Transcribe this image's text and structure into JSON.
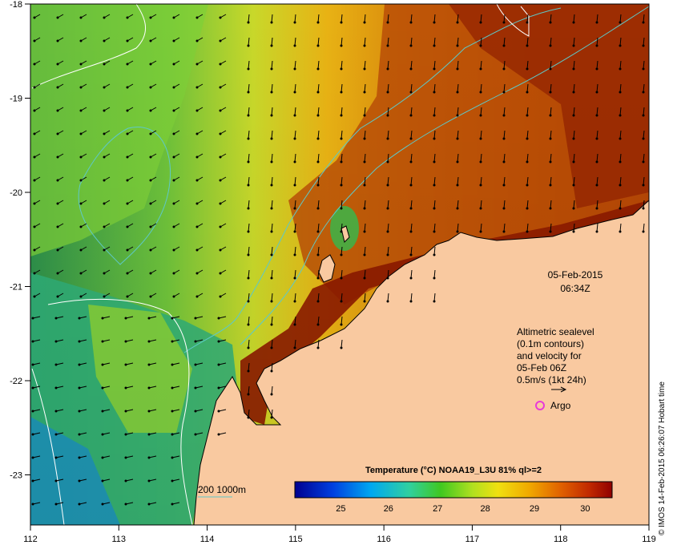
{
  "map": {
    "lon_ticks": [
      "112",
      "113",
      "114",
      "115",
      "116",
      "117",
      "118",
      "119"
    ],
    "lat_ticks": [
      "-18",
      "-19",
      "-20",
      "-21",
      "-22",
      "-23"
    ],
    "date": "05-Feb-2015",
    "time": "06:34Z",
    "altimetry_lines": [
      "Altimetric sealevel",
      "(0.1m contours)",
      "and velocity for",
      "05-Feb 06Z",
      "0.5m/s (1kt 24h)"
    ],
    "argo_label": "Argo",
    "depth_legend": "200  1000m",
    "colorbar_title": "Temperature (°C) NOAA19_L3U 81% ql>=2",
    "colorbar_ticks": [
      "25",
      "26",
      "27",
      "28",
      "29",
      "30"
    ],
    "credit": "© IMOS 14-Feb-2015 06:26:07 Hobart time",
    "colors": {
      "land": "#f9c9a0",
      "argo": "#e83ad8",
      "bathymetry": "#5ec8c8",
      "sealevel_contour": "#ffffff"
    }
  }
}
